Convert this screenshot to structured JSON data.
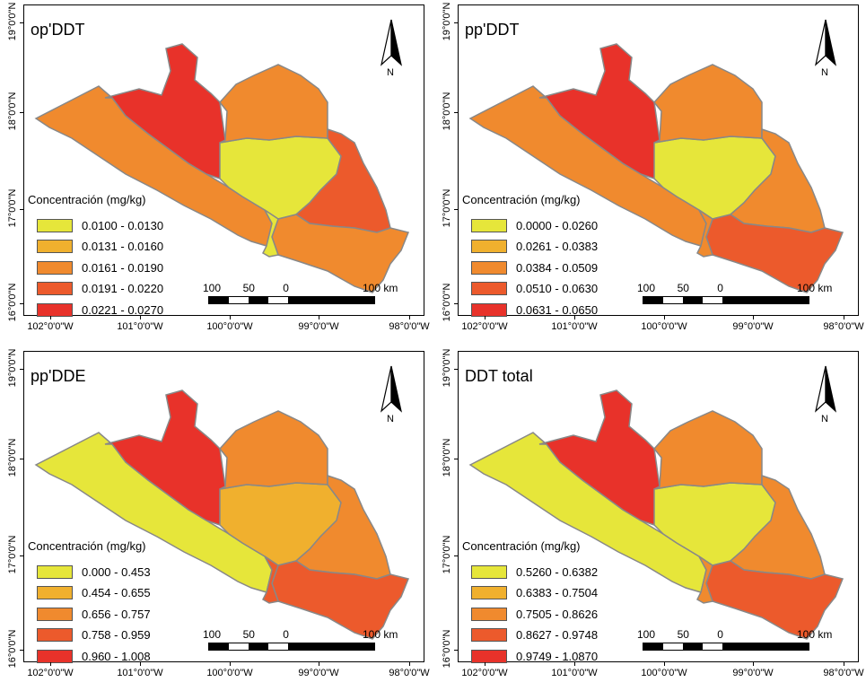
{
  "latitude_labels": [
    "19°0'0\"N",
    "18°0'0\"N",
    "17°0'0\"N",
    "16°0'0\"N"
  ],
  "longitude_labels": [
    "102°0'0\"W",
    "101°0'0\"W",
    "100°0'0\"W",
    "99°0'0\"W",
    "98°0'0\"W"
  ],
  "legend_title": "Concentración (mg/kg)",
  "north_label": "N",
  "scale_bar": {
    "labels": [
      "100",
      "50",
      "0",
      "100 km"
    ]
  },
  "colors": {
    "class1": "#e6e63a",
    "class2": "#f0b02e",
    "class3": "#f08a2e",
    "class4": "#ec5a2c",
    "class5": "#e8322a",
    "outline": "#888888"
  },
  "panels": [
    {
      "title": "op'DDT",
      "classes": [
        "0.0100 - 0.0130",
        "0.0131 - 0.0160",
        "0.0161 - 0.0190",
        "0.0191 - 0.0220",
        "0.0221 - 0.0270"
      ],
      "regions": {
        "west": 3,
        "north": 5,
        "central": 1,
        "northeast": 3,
        "east": 4,
        "south": 3,
        "southwest": 1
      }
    },
    {
      "title": "pp'DDT",
      "classes": [
        "0.0000 - 0.0260",
        "0.0261 - 0.0383",
        "0.0384 - 0.0509",
        "0.0510 - 0.0630",
        "0.0631 - 0.0650"
      ],
      "regions": {
        "west": 3,
        "north": 5,
        "central": 1,
        "northeast": 3,
        "east": 3,
        "south": 4,
        "southwest": 3
      }
    },
    {
      "title": "pp'DDE",
      "classes": [
        "0.000 - 0.453",
        "0.454 - 0.655",
        "0.656 - 0.757",
        "0.758 - 0.959",
        "0.960 - 1.008"
      ],
      "regions": {
        "west": 1,
        "north": 5,
        "central": 2,
        "northeast": 3,
        "east": 3,
        "south": 4,
        "southwest": 4
      }
    },
    {
      "title": "DDT total",
      "classes": [
        "0.5260 - 0.6382",
        "0.6383 - 0.7504",
        "0.7505 - 0.8626",
        "0.8627 - 0.9748",
        "0.9749 - 1.0870"
      ],
      "regions": {
        "west": 1,
        "north": 5,
        "central": 1,
        "northeast": 3,
        "east": 3,
        "south": 4,
        "southwest": 3
      }
    }
  ]
}
